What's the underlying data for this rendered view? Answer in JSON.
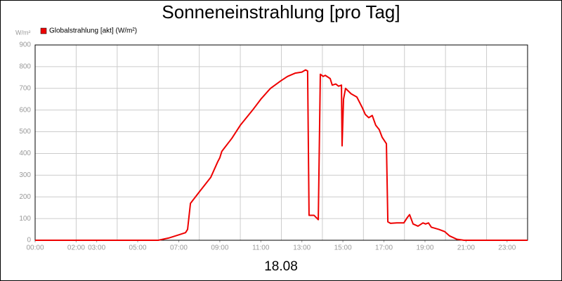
{
  "chart_data": {
    "type": "line",
    "title": "Sonneneinstrahlung [pro Tag]",
    "y_label": "W/m²",
    "x_label": "18.08",
    "xlim": [
      0,
      24
    ],
    "ylim": [
      0,
      900
    ],
    "yticks": [
      0,
      100,
      200,
      300,
      400,
      500,
      600,
      700,
      800,
      900
    ],
    "xticks": [
      {
        "value": 0,
        "label": "00:00"
      },
      {
        "value": 2,
        "label": "02:00"
      },
      {
        "value": 3,
        "label": "03:00"
      },
      {
        "value": 5,
        "label": "05:00"
      },
      {
        "value": 7,
        "label": "07:00"
      },
      {
        "value": 9,
        "label": "09:00"
      },
      {
        "value": 11,
        "label": "11:00"
      },
      {
        "value": 13,
        "label": "13:00"
      },
      {
        "value": 15,
        "label": "15:00"
      },
      {
        "value": 17,
        "label": "17:00"
      },
      {
        "value": 19,
        "label": "19:00"
      },
      {
        "value": 21,
        "label": "21:00"
      },
      {
        "value": 23,
        "label": "23:00"
      }
    ],
    "x_grid": [
      2,
      4,
      6,
      8,
      10,
      12,
      14,
      16,
      18,
      20,
      22
    ],
    "grid": true,
    "legend": "top-left",
    "x": [
      0,
      6.0,
      6.5,
      7.0,
      7.33,
      7.43,
      7.57,
      7.98,
      8.56,
      8.9,
      9.0,
      9.1,
      9.59,
      10.0,
      10.6,
      11.0,
      11.47,
      11.98,
      12.3,
      12.67,
      13.0,
      13.18,
      13.28,
      13.35,
      13.59,
      13.8,
      13.9,
      14.04,
      14.14,
      14.38,
      14.48,
      14.65,
      14.79,
      14.93,
      14.96,
      15.03,
      15.13,
      15.4,
      15.68,
      15.95,
      16.09,
      16.26,
      16.43,
      16.6,
      16.77,
      16.91,
      17.12,
      17.19,
      17.32,
      17.63,
      17.97,
      18.14,
      18.25,
      18.42,
      18.66,
      18.9,
      19.03,
      19.17,
      19.31,
      19.68,
      19.96,
      20.2,
      20.54,
      20.9,
      24
    ],
    "series": [
      {
        "name": "Globalstrahlung [akt] (W/m²)",
        "color": "#ee0000",
        "values": [
          0,
          0,
          10,
          25,
          35,
          50,
          170,
          220,
          290,
          362,
          380,
          410,
          470,
          530,
          600,
          650,
          700,
          735,
          755,
          770,
          775,
          785,
          780,
          115,
          115,
          95,
          765,
          755,
          760,
          745,
          715,
          720,
          710,
          715,
          435,
          650,
          700,
          675,
          660,
          610,
          580,
          565,
          575,
          530,
          510,
          475,
          445,
          85,
          78,
          80,
          80,
          105,
          118,
          75,
          65,
          80,
          75,
          80,
          60,
          50,
          40,
          20,
          5,
          0,
          0
        ]
      }
    ]
  }
}
